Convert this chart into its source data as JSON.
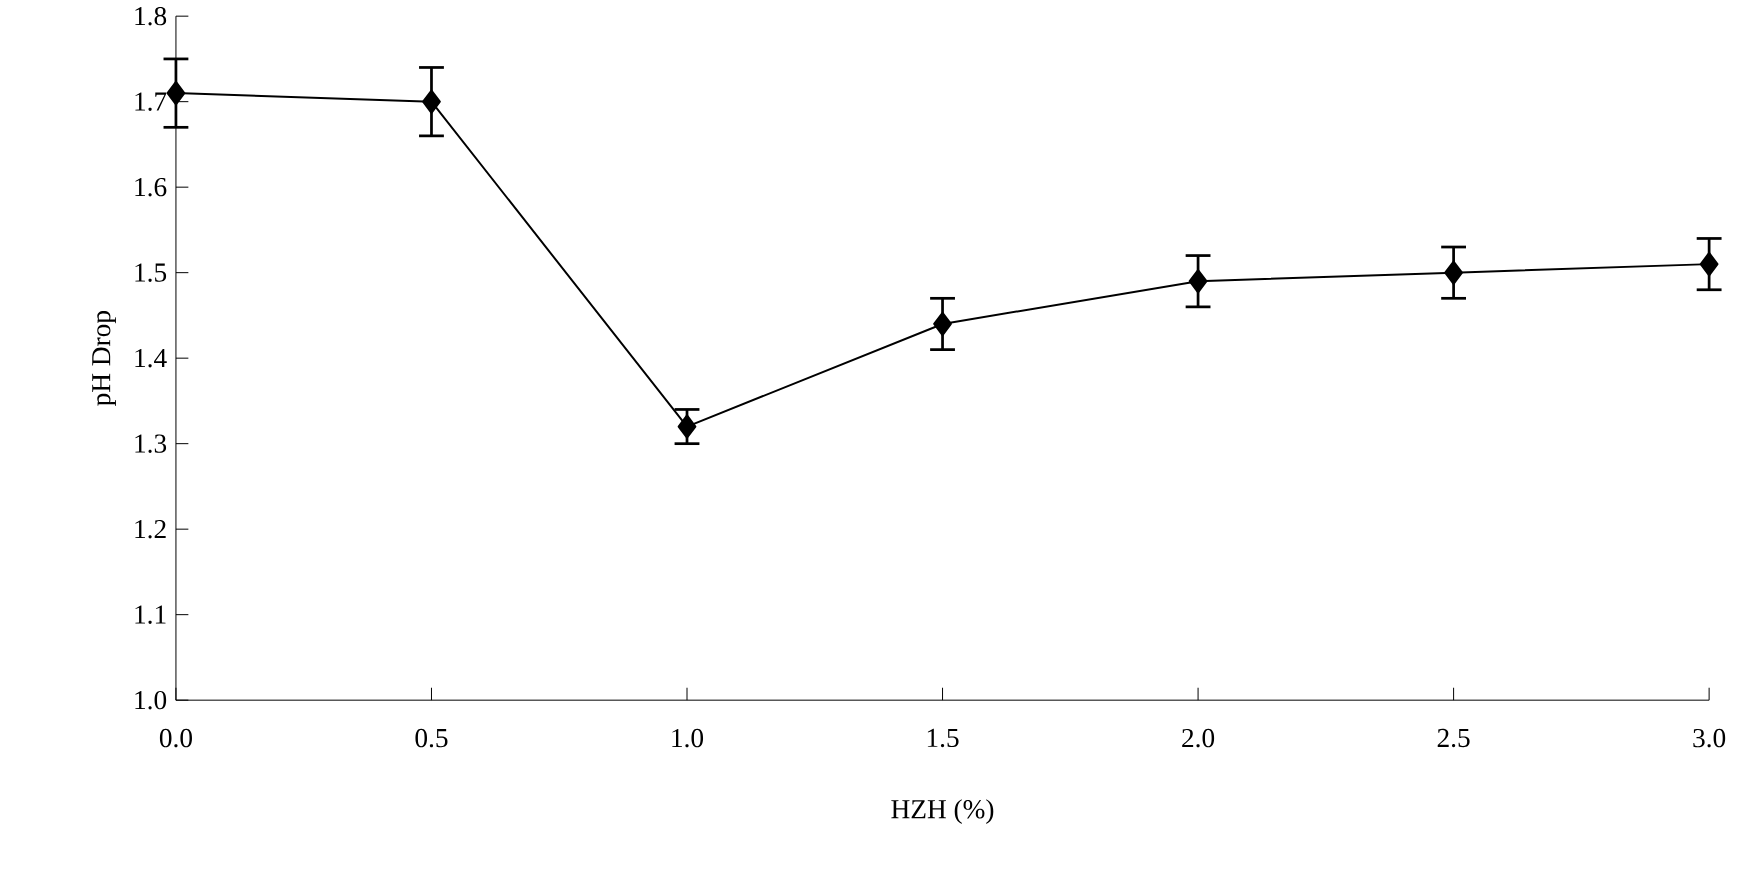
{
  "chart_data": {
    "type": "line",
    "xlabel": "HZH (%)",
    "ylabel": "pH Drop",
    "x": [
      0.0,
      0.5,
      1.0,
      1.5,
      2.0,
      2.5,
      3.0
    ],
    "values": [
      1.71,
      1.7,
      1.32,
      1.44,
      1.49,
      1.5,
      1.51
    ],
    "errors": [
      0.04,
      0.04,
      0.02,
      0.03,
      0.03,
      0.03,
      0.03
    ],
    "color": "#000000",
    "marker": "diamond",
    "line_style": "solid",
    "xlim": [
      0.0,
      3.0
    ],
    "ylim": [
      1.0,
      1.8
    ],
    "xticks": [
      {
        "value": 0.0,
        "label": "0.0"
      },
      {
        "value": 0.5,
        "label": "0.5"
      },
      {
        "value": 1.0,
        "label": "1.0"
      },
      {
        "value": 1.5,
        "label": "1.5"
      },
      {
        "value": 2.0,
        "label": "2.0"
      },
      {
        "value": 2.5,
        "label": "2.5"
      },
      {
        "value": 3.0,
        "label": "3.0"
      }
    ],
    "yticks": [
      {
        "value": 1.0,
        "label": "1.0"
      },
      {
        "value": 1.1,
        "label": "1.1"
      },
      {
        "value": 1.2,
        "label": "1.2"
      },
      {
        "value": 1.3,
        "label": "1.3"
      },
      {
        "value": 1.4,
        "label": "1.4"
      },
      {
        "value": 1.5,
        "label": "1.5"
      },
      {
        "value": 1.6,
        "label": "1.6"
      },
      {
        "value": 1.7,
        "label": "1.7"
      },
      {
        "value": 1.8,
        "label": "1.8"
      }
    ]
  }
}
